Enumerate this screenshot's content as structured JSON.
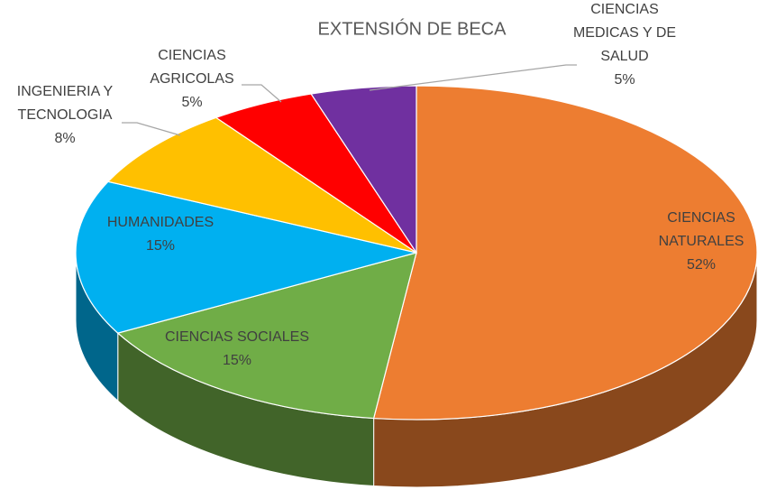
{
  "chart_data": {
    "type": "pie",
    "title": "EXTENSIÓN DE BECA",
    "categories": [
      "CIENCIAS NATURALES",
      "CIENCIAS SOCIALES",
      "HUMANIDADES",
      "INGENIERIA Y TECNOLOGIA",
      "CIENCIAS AGRICOLAS",
      "CIENCIAS MEDICAS Y DE SALUD"
    ],
    "values": [
      52,
      15,
      15,
      8,
      5,
      5
    ],
    "value_labels": [
      "52%",
      "15%",
      "15%",
      "8%",
      "5%",
      "5%"
    ],
    "colors": [
      "#ED7D31",
      "#70AD47",
      "#00B0F0",
      "#FFC000",
      "#FF0000",
      "#7030A0"
    ]
  }
}
